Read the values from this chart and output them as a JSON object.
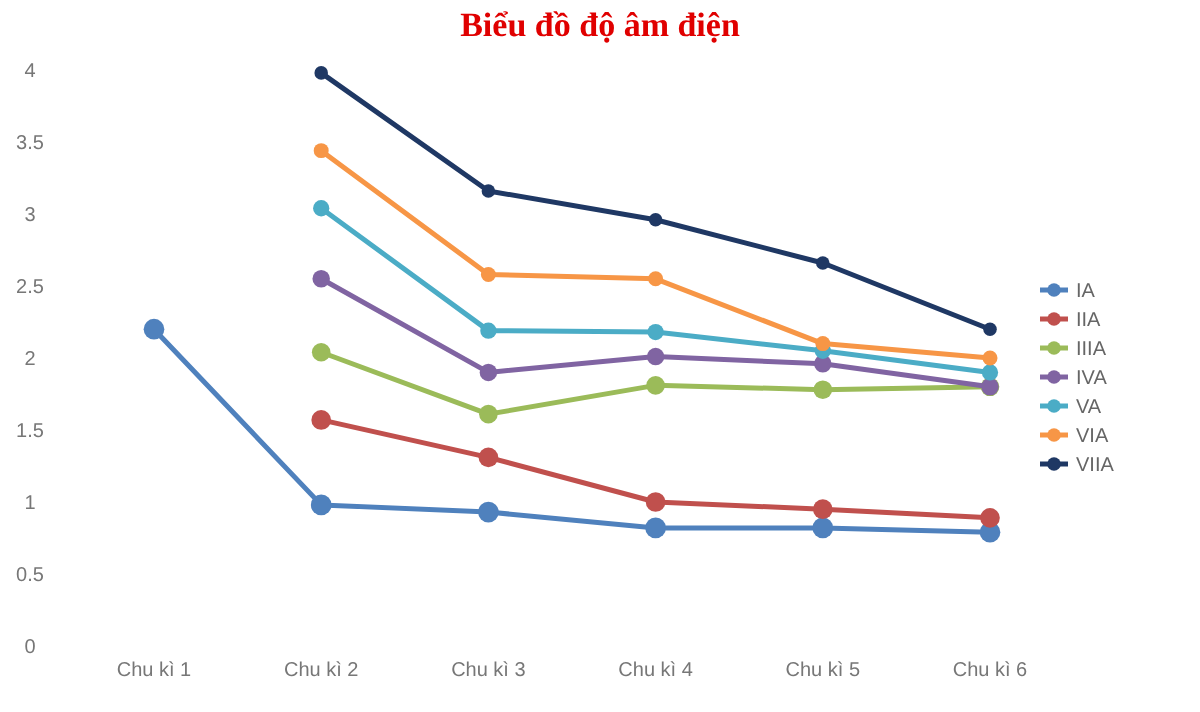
{
  "chart_data": {
    "type": "line",
    "title": "Biểu đồ độ âm điện",
    "categories": [
      "Chu kì 1",
      "Chu kì 2",
      "Chu kì 3",
      "Chu kì 4",
      "Chu kì 5",
      "Chu kì 6"
    ],
    "series": [
      {
        "name": "IA",
        "color": "#4f81bd",
        "values": [
          2.2,
          0.98,
          0.93,
          0.82,
          0.82,
          0.79
        ]
      },
      {
        "name": "IIA",
        "color": "#c0504d",
        "values": [
          null,
          1.57,
          1.31,
          1.0,
          0.95,
          0.89
        ]
      },
      {
        "name": "IIIA",
        "color": "#9bbb59",
        "values": [
          null,
          2.04,
          1.61,
          1.81,
          1.78,
          1.8
        ]
      },
      {
        "name": "IVA",
        "color": "#8064a2",
        "values": [
          null,
          2.55,
          1.9,
          2.01,
          1.96,
          1.8
        ]
      },
      {
        "name": "VA",
        "color": "#4bacc6",
        "values": [
          null,
          3.04,
          2.19,
          2.18,
          2.05,
          1.9
        ]
      },
      {
        "name": "VIA",
        "color": "#f79646",
        "values": [
          null,
          3.44,
          2.58,
          2.55,
          2.1,
          2.0
        ]
      },
      {
        "name": "VIIA",
        "color": "#1f3864",
        "values": [
          null,
          3.98,
          3.16,
          2.96,
          2.66,
          2.2
        ]
      }
    ],
    "ylim": [
      0,
      4
    ],
    "yticks": [
      0,
      0.5,
      1,
      1.5,
      2,
      2.5,
      3,
      3.5,
      4
    ],
    "grid": false,
    "legend": "right",
    "marker": "circle",
    "line_style": "solid"
  }
}
